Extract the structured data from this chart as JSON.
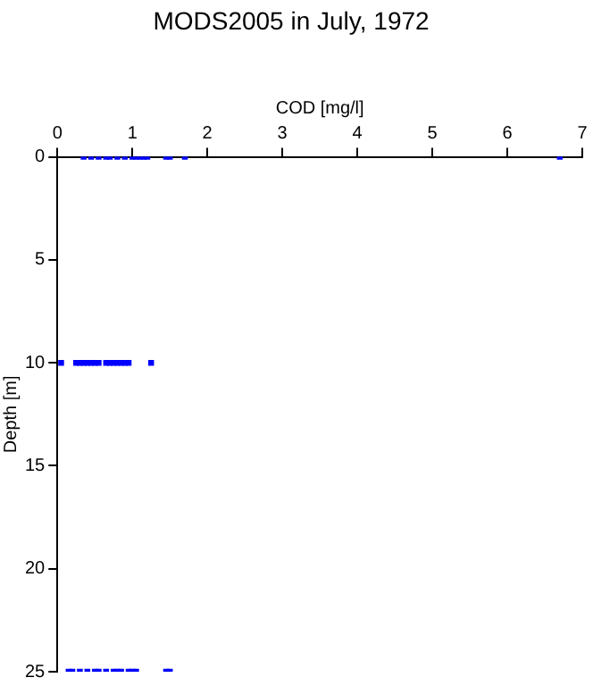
{
  "chart_data": {
    "type": "scatter",
    "title": "MODS2005 in July, 1972",
    "xlabel": "COD [mg/l]",
    "ylabel": "Depth [m]",
    "x": [
      0.35,
      0.45,
      0.55,
      0.65,
      0.7,
      0.8,
      0.9,
      1.0,
      1.05,
      1.1,
      1.15,
      1.2,
      1.45,
      1.5,
      1.7,
      6.7,
      0.05,
      0.25,
      0.3,
      0.35,
      0.4,
      0.45,
      0.5,
      0.55,
      0.65,
      0.7,
      0.75,
      0.8,
      0.85,
      0.9,
      0.95,
      1.25,
      0.15,
      0.2,
      0.3,
      0.4,
      0.5,
      0.55,
      0.65,
      0.75,
      0.8,
      0.85,
      0.95,
      1.0,
      1.05,
      1.45,
      1.5
    ],
    "series": [
      {
        "color": "#0000ff",
        "values": [
          0,
          0,
          0,
          0,
          0,
          0,
          0,
          0,
          0,
          0,
          0,
          0,
          0,
          0,
          0,
          0,
          10,
          10,
          10,
          10,
          10,
          10,
          10,
          10,
          10,
          10,
          10,
          10,
          10,
          10,
          10,
          10,
          25,
          25,
          25,
          25,
          25,
          25,
          25,
          25,
          25,
          25,
          25,
          25,
          25,
          25,
          25
        ]
      }
    ],
    "xlim": [
      0,
      7
    ],
    "xticks": [
      0,
      1,
      2,
      3,
      4,
      5,
      6,
      7
    ],
    "ylim": [
      25,
      0
    ],
    "yticks": [
      0,
      5,
      10,
      15,
      20,
      25
    ],
    "grid": false,
    "legend": false,
    "marker": "square"
  }
}
